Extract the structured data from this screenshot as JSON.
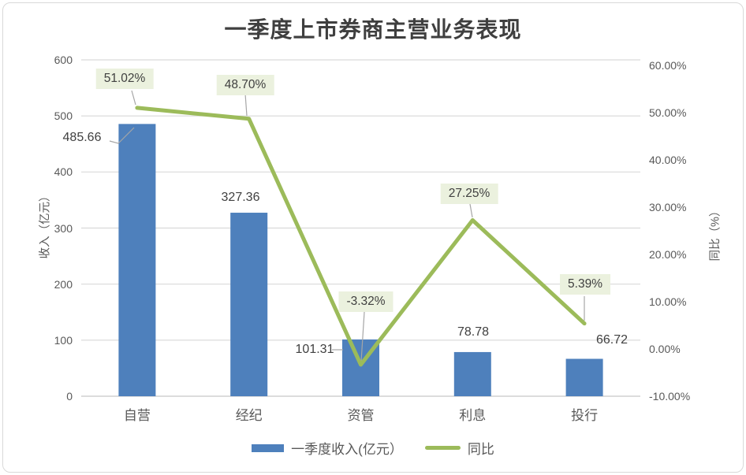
{
  "chart_data": {
    "type": "bar+line combo",
    "title": "一季度上市券商主营业务表现",
    "categories": [
      "自营",
      "经纪",
      "资管",
      "利息",
      "投行"
    ],
    "series": [
      {
        "name": "一季度收入(亿元）",
        "type": "bar",
        "axis": "left",
        "values": [
          485.66,
          327.36,
          101.31,
          78.78,
          66.72
        ],
        "labels": [
          "485.66",
          "327.36",
          "101.31",
          "78.78",
          "66.72"
        ]
      },
      {
        "name": "同比",
        "type": "line",
        "axis": "right",
        "values": [
          51.02,
          48.7,
          -3.32,
          27.25,
          5.39
        ],
        "labels": [
          "51.02%",
          "48.70%",
          "-3.32%",
          "27.25%",
          "5.39%"
        ]
      }
    ],
    "left_axis": {
      "title": "收入（亿元）",
      "min": 0,
      "max": 600,
      "step": 100,
      "ticks": [
        "0",
        "100",
        "200",
        "300",
        "400",
        "500",
        "600"
      ]
    },
    "right_axis": {
      "title": "同比（%）",
      "min": -10,
      "max": 60,
      "step": 10,
      "ticks": [
        "-10.00%",
        "0.00%",
        "10.00%",
        "20.00%",
        "30.00%",
        "40.00%",
        "50.00%",
        "60.00%"
      ]
    },
    "legend": {
      "position": "bottom"
    },
    "grid": "horizontal major gridlines on"
  },
  "colors": {
    "bar": "#4E80BC",
    "line": "#9CBB5A",
    "label_bg": "#EBF1DE",
    "grid": "#D9D9D9",
    "axis_line": "#C6C6C6",
    "axis_text": "#595959",
    "label_text": "#404040",
    "leader": "#A6A6A6",
    "title_text": "#3F3F3F",
    "card_border": "#D9D9D9"
  }
}
